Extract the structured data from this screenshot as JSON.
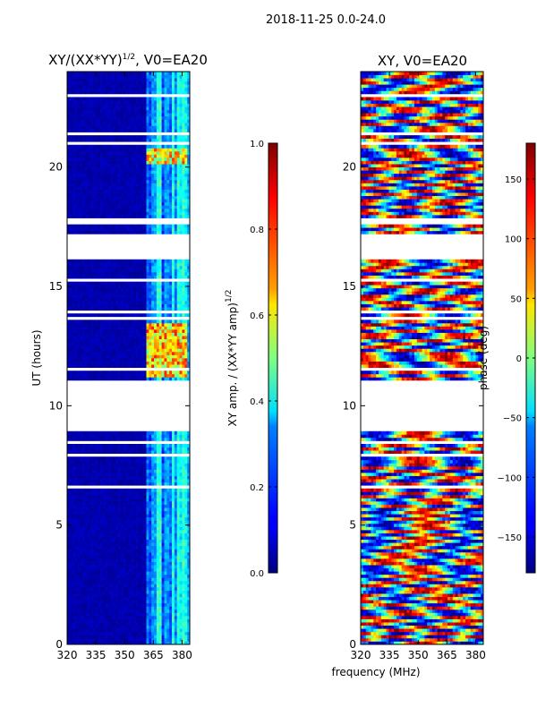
{
  "figure": {
    "suptitle": "2018-11-25 0.0-24.0",
    "shared_xlabel": "frequency (MHz)"
  },
  "colors": {
    "background": "#ffffff",
    "axis": "#000000",
    "jet_low": "#00007f",
    "jet_high": "#7f0000"
  },
  "chart_data": [
    {
      "type": "heatmap",
      "name": "amplitude",
      "title_main": "XY/(XX*YY)",
      "title_sup": "1/2",
      "title_tail": ", V0=EA20",
      "xlabel": "",
      "ylabel": "UT (hours)",
      "xlim": [
        320,
        384
      ],
      "ylim": [
        0,
        24
      ],
      "xticks": [
        320,
        335,
        350,
        365,
        380
      ],
      "yticks": [
        0,
        5,
        10,
        15,
        20
      ],
      "blank_hour_bands": [
        [
          9.0,
          11.0
        ],
        [
          16.15,
          17.25
        ],
        [
          17.6,
          17.9
        ]
      ],
      "rfi_band_mhz": [
        361,
        384
      ],
      "hot_regions": [
        {
          "f": [
            362,
            383
          ],
          "t": [
            11.2,
            13.4
          ],
          "level": 0.72
        },
        {
          "f": [
            362,
            383
          ],
          "t": [
            20.2,
            20.8
          ],
          "level": 0.68
        }
      ],
      "colorbar": {
        "label_main": "XY amp. / (XX*YY amp)",
        "label_sup": "1/2",
        "range": [
          0.0,
          1.0
        ],
        "ticks": [
          "0.0",
          "0.2",
          "0.4",
          "0.6",
          "0.8",
          "1.0"
        ],
        "tick_values": [
          0.0,
          0.2,
          0.4,
          0.6,
          0.8,
          1.0
        ]
      }
    },
    {
      "type": "heatmap",
      "name": "phase",
      "title": "XY, V0=EA20",
      "xlabel": "frequency (MHz)",
      "ylabel": "",
      "xlim": [
        320,
        384
      ],
      "ylim": [
        0,
        24
      ],
      "xticks": [
        320,
        335,
        350,
        365,
        380
      ],
      "yticks": [
        0,
        5,
        10,
        15,
        20
      ],
      "blank_hour_bands": [
        [
          9.0,
          11.0
        ],
        [
          16.15,
          17.25
        ],
        [
          17.6,
          17.9
        ]
      ],
      "colorbar": {
        "label": "phase (deg)",
        "range": [
          -180,
          180
        ],
        "ticks": [
          "−150",
          "−100",
          "−50",
          "0",
          "50",
          "100",
          "150"
        ],
        "tick_values": [
          -150,
          -100,
          -50,
          0,
          50,
          100,
          150
        ]
      }
    }
  ]
}
